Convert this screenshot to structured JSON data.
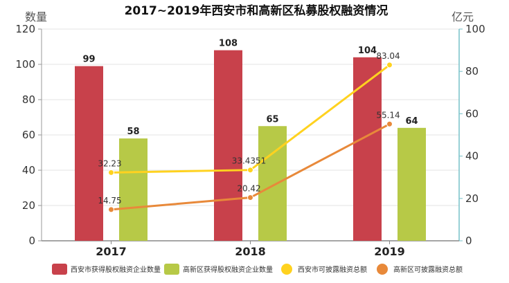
{
  "chart_data": {
    "type": "bar",
    "title": "2017~2019年西安市和高新区私募股权融资情况",
    "categories": [
      "2017",
      "2018",
      "2019"
    ],
    "left_axis": {
      "label": "数量",
      "min": 0,
      "max": 120,
      "ticks": [
        0,
        20,
        40,
        60,
        80,
        100,
        120
      ]
    },
    "right_axis": {
      "label": "亿元",
      "min": 0,
      "max": 100,
      "ticks": [
        0,
        20,
        40,
        60,
        80,
        100
      ]
    },
    "grid": true,
    "legend_position": "bottom",
    "series": [
      {
        "name": "西安市获得股权融资企业数量",
        "type": "bar",
        "axis": "left",
        "color": "#c8414b",
        "values": [
          99,
          108,
          104
        ],
        "labels": [
          "99",
          "108",
          "104"
        ]
      },
      {
        "name": "高新区获得股权融资企业数量",
        "type": "bar",
        "axis": "left",
        "color": "#b7c947",
        "values": [
          58,
          65,
          64
        ],
        "labels": [
          "58",
          "65",
          "64"
        ]
      },
      {
        "name": "西安市可披露融资总额",
        "type": "line",
        "axis": "right",
        "color": "#ffd21f",
        "values": [
          32.23,
          33.4351,
          83.04
        ],
        "labels": [
          "32.23",
          "33.4351",
          "83.04"
        ]
      },
      {
        "name": "高新区可披露融资总额",
        "type": "line",
        "axis": "right",
        "color": "#e8893a",
        "values": [
          14.75,
          20.42,
          55.14
        ],
        "labels": [
          "14.75",
          "20.42",
          "55.14"
        ]
      }
    ]
  }
}
